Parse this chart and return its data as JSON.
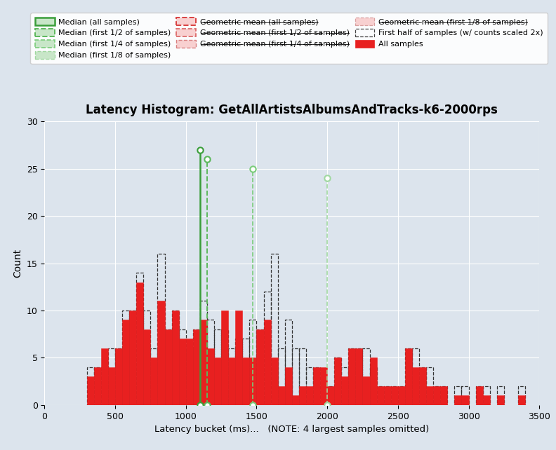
{
  "title": "Latency Histogram: GetAllArtistsAlbumsAndTracks-k6-2000rps",
  "xlabel": "Latency bucket (ms)...   (NOTE: 4 largest samples omitted)",
  "ylabel": "Count",
  "background_color": "#dce4ed",
  "xlim": [
    0,
    3500
  ],
  "ylim": [
    0,
    30
  ],
  "all_samples_color": "#e82020",
  "half_samples_edge": "#333333",
  "bin_width": 50,
  "all_bars": [
    [
      300,
      3
    ],
    [
      350,
      4
    ],
    [
      400,
      6
    ],
    [
      450,
      4
    ],
    [
      500,
      6
    ],
    [
      550,
      9
    ],
    [
      600,
      10
    ],
    [
      650,
      13
    ],
    [
      700,
      8
    ],
    [
      750,
      5
    ],
    [
      800,
      11
    ],
    [
      850,
      8
    ],
    [
      900,
      10
    ],
    [
      950,
      7
    ],
    [
      1000,
      7
    ],
    [
      1050,
      8
    ],
    [
      1100,
      9
    ],
    [
      1150,
      6
    ],
    [
      1200,
      5
    ],
    [
      1250,
      10
    ],
    [
      1300,
      5
    ],
    [
      1350,
      10
    ],
    [
      1400,
      5
    ],
    [
      1450,
      5
    ],
    [
      1500,
      8
    ],
    [
      1550,
      9
    ],
    [
      1600,
      5
    ],
    [
      1650,
      2
    ],
    [
      1700,
      4
    ],
    [
      1750,
      1
    ],
    [
      1800,
      2
    ],
    [
      1850,
      2
    ],
    [
      1900,
      4
    ],
    [
      1950,
      4
    ],
    [
      2000,
      2
    ],
    [
      2050,
      5
    ],
    [
      2100,
      3
    ],
    [
      2150,
      6
    ],
    [
      2200,
      6
    ],
    [
      2250,
      3
    ],
    [
      2300,
      5
    ],
    [
      2350,
      2
    ],
    [
      2400,
      2
    ],
    [
      2450,
      2
    ],
    [
      2500,
      2
    ],
    [
      2550,
      6
    ],
    [
      2600,
      4
    ],
    [
      2650,
      4
    ],
    [
      2700,
      2
    ],
    [
      2750,
      2
    ],
    [
      2800,
      2
    ],
    [
      2850,
      0
    ],
    [
      2900,
      1
    ],
    [
      2950,
      1
    ],
    [
      3000,
      0
    ],
    [
      3050,
      2
    ],
    [
      3100,
      1
    ],
    [
      3150,
      0
    ],
    [
      3200,
      1
    ],
    [
      3250,
      0
    ],
    [
      3300,
      0
    ],
    [
      3350,
      1
    ]
  ],
  "half_bars": [
    [
      300,
      4
    ],
    [
      350,
      4
    ],
    [
      400,
      4
    ],
    [
      450,
      6
    ],
    [
      500,
      6
    ],
    [
      550,
      10
    ],
    [
      600,
      10
    ],
    [
      650,
      14
    ],
    [
      700,
      10
    ],
    [
      750,
      6
    ],
    [
      800,
      16
    ],
    [
      850,
      8
    ],
    [
      900,
      10
    ],
    [
      950,
      8
    ],
    [
      1000,
      6
    ],
    [
      1050,
      8
    ],
    [
      1100,
      11
    ],
    [
      1150,
      9
    ],
    [
      1200,
      8
    ],
    [
      1250,
      8
    ],
    [
      1300,
      6
    ],
    [
      1350,
      7
    ],
    [
      1400,
      7
    ],
    [
      1450,
      9
    ],
    [
      1500,
      8
    ],
    [
      1550,
      12
    ],
    [
      1600,
      16
    ],
    [
      1650,
      6
    ],
    [
      1700,
      9
    ],
    [
      1750,
      6
    ],
    [
      1800,
      6
    ],
    [
      1850,
      4
    ],
    [
      1900,
      4
    ],
    [
      1950,
      2
    ],
    [
      2000,
      2
    ],
    [
      2050,
      5
    ],
    [
      2100,
      4
    ],
    [
      2150,
      6
    ],
    [
      2200,
      6
    ],
    [
      2250,
      6
    ],
    [
      2300,
      4
    ],
    [
      2350,
      2
    ],
    [
      2400,
      2
    ],
    [
      2450,
      2
    ],
    [
      2500,
      2
    ],
    [
      2550,
      6
    ],
    [
      2600,
      6
    ],
    [
      2650,
      4
    ],
    [
      2700,
      4
    ],
    [
      2750,
      2
    ],
    [
      2800,
      2
    ],
    [
      2850,
      0
    ],
    [
      2900,
      2
    ],
    [
      2950,
      2
    ],
    [
      3000,
      0
    ],
    [
      3050,
      2
    ],
    [
      3100,
      2
    ],
    [
      3150,
      0
    ],
    [
      3200,
      2
    ],
    [
      3250,
      0
    ],
    [
      3300,
      0
    ],
    [
      3350,
      2
    ]
  ],
  "median_all_x": 1100,
  "median_half_x": 1150,
  "median_quarter_x": 1475,
  "median_eighth_x": 2000,
  "marker_y_all": 27,
  "marker_y_half": 26,
  "marker_y_quarter": 25,
  "marker_y_eighth": 24,
  "green_solid": "#3a9e3a",
  "green_d2": "#5cb85c",
  "green_d4": "#7acc7a",
  "green_d8": "#a0d8a0",
  "red_solid": "#d94040",
  "red_d2": "#d96060",
  "red_d4": "#d98080",
  "red_d8": "#d9a0a0"
}
